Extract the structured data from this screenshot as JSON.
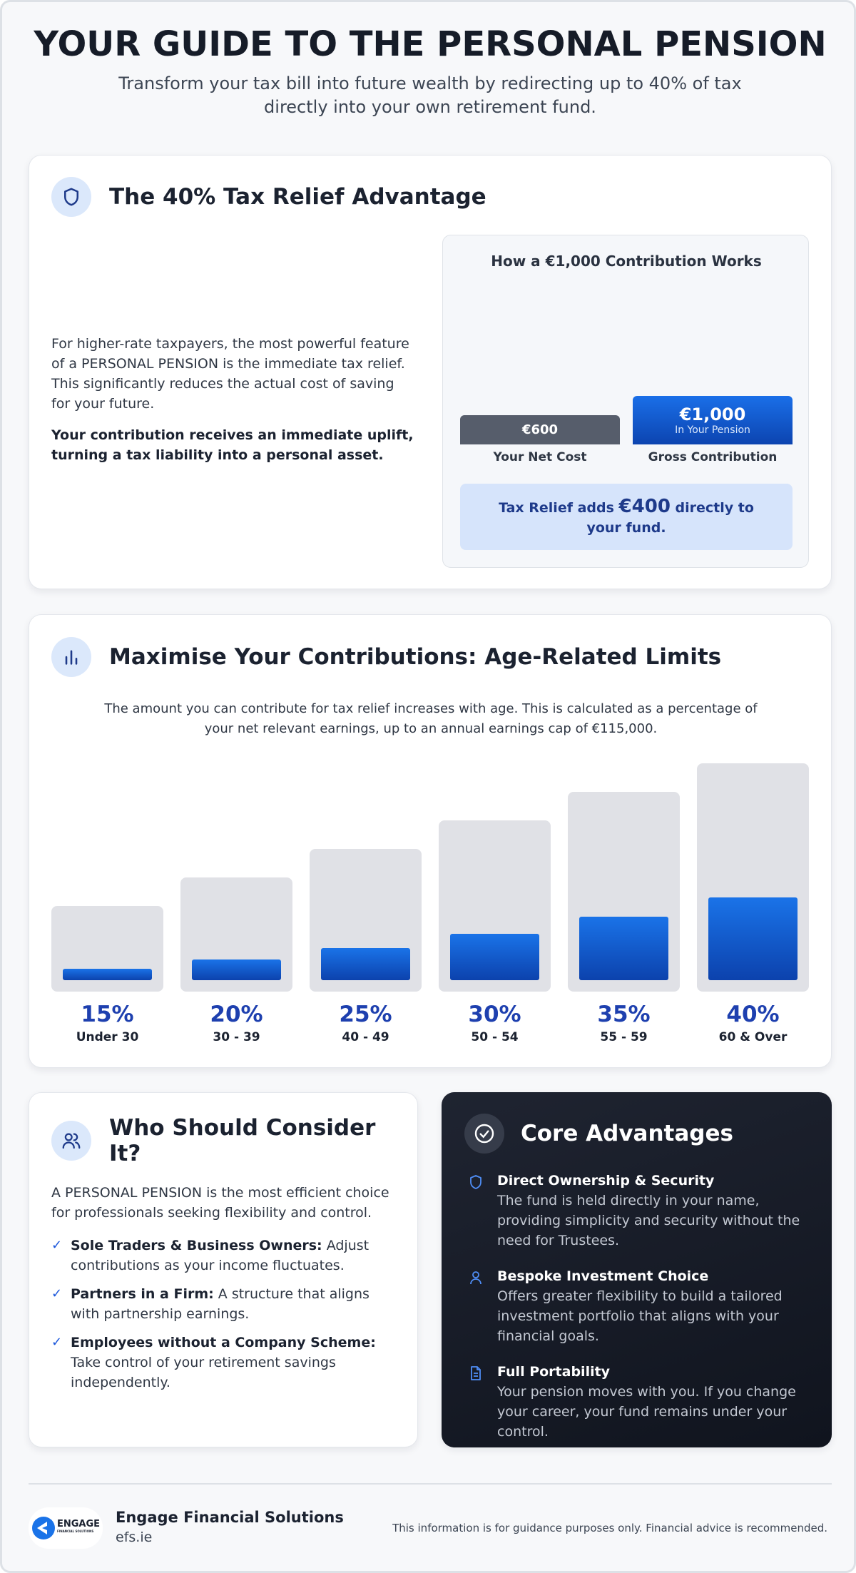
{
  "header": {
    "title": "YOUR GUIDE TO THE PERSONAL PENSION",
    "subtitle": "Transform your tax bill into future wealth by redirecting up to 40% of tax directly into your own retirement fund."
  },
  "tax_relief": {
    "heading": "The 40% Tax Relief Advantage",
    "paragraph": "For higher-rate taxpayers, the most powerful feature of a PERSONAL PENSION is the immediate tax relief. This significantly reduces the actual cost of saving for your future.",
    "emphasis": "Your contribution receives an immediate uplift, turning a tax liability into a personal asset.",
    "panel": {
      "title": "How a €1,000 Contribution Works",
      "bars": [
        {
          "value": 600,
          "label": "€600",
          "caption": "Your Net Cost"
        },
        {
          "value": 1000,
          "label": "€1,000",
          "sublabel": "In Your Pension",
          "caption": "Gross Contribution"
        }
      ],
      "relief": {
        "prefix": "Tax Relief adds",
        "amount": "€400",
        "suffix": "directly to your fund."
      }
    }
  },
  "limits": {
    "heading": "Maximise Your Contributions: Age-Related Limits",
    "description": "The amount you can contribute for tax relief increases with age. This is calculated as a percentage of your net relevant earnings, up to an annual earnings cap of €115,000.",
    "items": [
      {
        "percent": 15,
        "label": "15%",
        "age": "Under 30"
      },
      {
        "percent": 20,
        "label": "20%",
        "age": "30 - 39"
      },
      {
        "percent": 25,
        "label": "25%",
        "age": "40 - 49"
      },
      {
        "percent": 30,
        "label": "30%",
        "age": "50 - 54"
      },
      {
        "percent": 35,
        "label": "35%",
        "age": "55 - 59"
      },
      {
        "percent": 40,
        "label": "40%",
        "age": "60 & Over"
      }
    ]
  },
  "audience": {
    "heading": "Who Should Consider It?",
    "intro": "A PERSONAL PENSION is the most efficient choice for professionals seeking flexibility and control.",
    "bullets": [
      {
        "lead": "Sole Traders & Business Owners:",
        "text": "Adjust contributions as your income fluctuates."
      },
      {
        "lead": "Partners in a Firm:",
        "text": "A structure that aligns with partnership earnings."
      },
      {
        "lead": "Employees without a Company Scheme:",
        "text": "Take control of your retirement savings independently."
      }
    ]
  },
  "advantages": {
    "heading": "Core Advantages",
    "items": [
      {
        "title": "Direct Ownership & Security",
        "text": "The fund is held directly in your name, providing simplicity and security without the need for Trustees."
      },
      {
        "title": "Bespoke Investment Choice",
        "text": "Offers greater flexibility to build a tailored investment portfolio that aligns with your financial goals."
      },
      {
        "title": "Full Portability",
        "text": "Your pension moves with you. If you change your career, your fund remains under your control."
      }
    ]
  },
  "footer": {
    "logo": {
      "word": "ENGAGE",
      "tagline": "FINANCIAL SOLUTIONS"
    },
    "company": "Engage Financial Solutions",
    "website": "efs.ie",
    "disclaimer": "This information is for guidance purposes only. Financial advice is recommended."
  }
}
